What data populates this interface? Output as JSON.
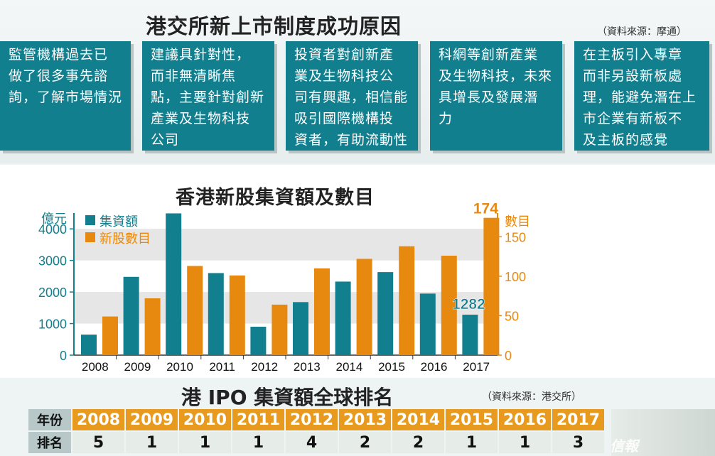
{
  "header": {
    "title": "港交所新上市制度成功原因",
    "source": "（資料來源：摩通）"
  },
  "reasons": [
    {
      "lines": [
        "監管機構過去已",
        "做了很多事先諮",
        "詢，了解市場情況"
      ]
    },
    {
      "lines": [
        "建議具針對性，",
        "而非無清晰焦",
        "點，主要針對創新",
        "產業及生物科技",
        "公司"
      ]
    },
    {
      "lines": [
        "投資者對創新產",
        "業及生物科技公",
        "司有興趣，相信能",
        "吸引國際機構投",
        "資者，有助流動性"
      ]
    },
    {
      "lines": [
        "科網等創新產業",
        "及生物科技，未來",
        "具增長及發展潛",
        "力"
      ]
    },
    {
      "lines": [
        "在主板引入專章",
        "而非另設新板處",
        "理，能避免潛在上",
        "市企業有新板不",
        "及主板的感覺"
      ]
    }
  ],
  "colors": {
    "teal": "#127f8e",
    "orange": "#e8890f"
  },
  "chart_data": {
    "type": "bar",
    "title": "香港新股集資額及數目",
    "categories": [
      "2008",
      "2009",
      "2010",
      "2011",
      "2012",
      "2013",
      "2014",
      "2015",
      "2016",
      "2017"
    ],
    "series": [
      {
        "name": "集資額",
        "axis": "left",
        "values": [
          650,
          2480,
          4490,
          2600,
          900,
          1680,
          2330,
          2630,
          1950,
          1282
        ]
      },
      {
        "name": "新股數目",
        "axis": "right",
        "values": [
          49,
          72,
          113,
          101,
          64,
          110,
          122,
          138,
          126,
          174
        ]
      }
    ],
    "ylabel_left": "億元",
    "ylabel_right": "數目",
    "ylim_left": [
      0,
      4500
    ],
    "yticks_left": [
      "0",
      "1000",
      "2000",
      "3000",
      "4000"
    ],
    "ylim_right": [
      0,
      180
    ],
    "yticks_right": [
      "0",
      "50",
      "100",
      "150"
    ],
    "annotations": [
      "174",
      "1282"
    ],
    "legend": "top-left"
  },
  "ranking": {
    "title": "港 IPO 集資額全球排名",
    "source": "（資料來源：港交所）",
    "year_header": "年份",
    "rank_header": "排名",
    "years": [
      "2008",
      "2009",
      "2010",
      "2011",
      "2012",
      "2013",
      "2014",
      "2015",
      "2016",
      "2017"
    ],
    "ranks": [
      "5",
      "1",
      "1",
      "1",
      "4",
      "2",
      "2",
      "1",
      "1",
      "3"
    ]
  },
  "brand": "信報"
}
